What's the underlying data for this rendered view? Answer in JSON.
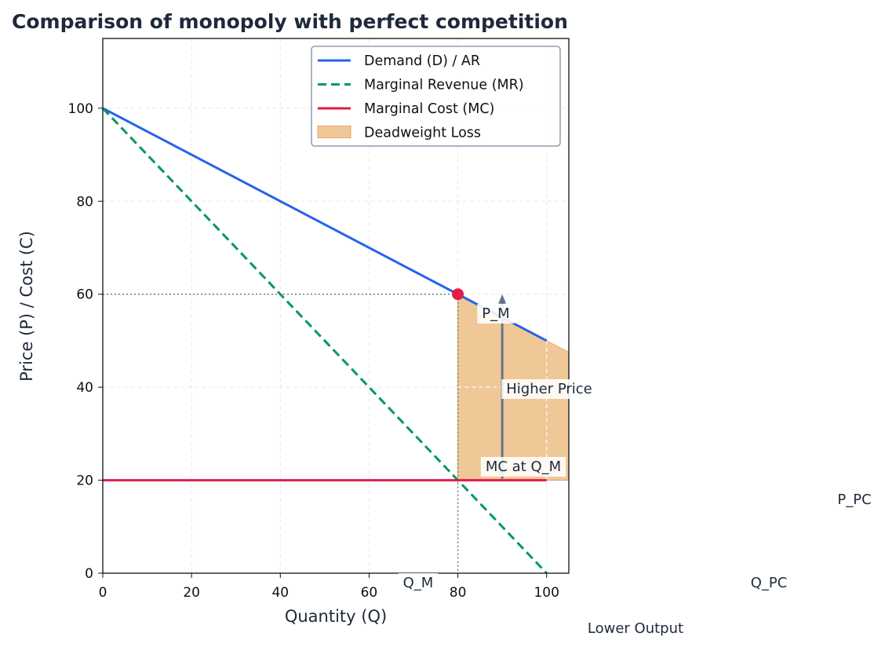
{
  "chart_data": {
    "type": "line",
    "title": "Comparison of monopoly with perfect competition",
    "xlabel": "Quantity (Q)",
    "ylabel": "Price (P) / Cost (C)",
    "xlim": [
      0,
      105
    ],
    "ylim": [
      0,
      115
    ],
    "xticks": [
      0,
      20,
      40,
      60,
      80,
      100
    ],
    "yticks": [
      0,
      20,
      40,
      60,
      80,
      100
    ],
    "grid": true,
    "legend_position": "top-right",
    "series": [
      {
        "name": "Demand (D) / AR",
        "style": "solid",
        "color": "#2563eb",
        "x": [
          0,
          100
        ],
        "y": [
          100,
          50
        ]
      },
      {
        "name": "Marginal Revenue (MR)",
        "style": "dashed",
        "color": "#059669",
        "x": [
          0,
          100
        ],
        "y": [
          100,
          0
        ]
      },
      {
        "name": "Marginal Cost (MC)",
        "style": "solid",
        "color": "#e11d48",
        "x": [
          0,
          100
        ],
        "y": [
          20,
          20
        ]
      }
    ],
    "shaded_area": {
      "name": "Deadweight Loss",
      "color": "#f0c897",
      "x": [
        80,
        105
      ],
      "upper": "demand",
      "lower": 20
    },
    "monopoly_point": {
      "x": 80,
      "y": 60,
      "color": "#e11d48"
    },
    "arrow": {
      "x": 90,
      "from": 60,
      "to": 20,
      "color": "#64748b"
    },
    "annotations": [
      {
        "id": "q_m",
        "text": "Q_M"
      },
      {
        "id": "p_m",
        "text": "P_M"
      },
      {
        "id": "higher_price",
        "text": "Higher Price"
      },
      {
        "id": "mc_qm",
        "text": "MC at Q_M"
      },
      {
        "id": "p_pc",
        "text": "P_PC"
      },
      {
        "id": "q_pc",
        "text": "Q_PC"
      },
      {
        "id": "lower_output",
        "text": "Lower Output"
      }
    ]
  }
}
